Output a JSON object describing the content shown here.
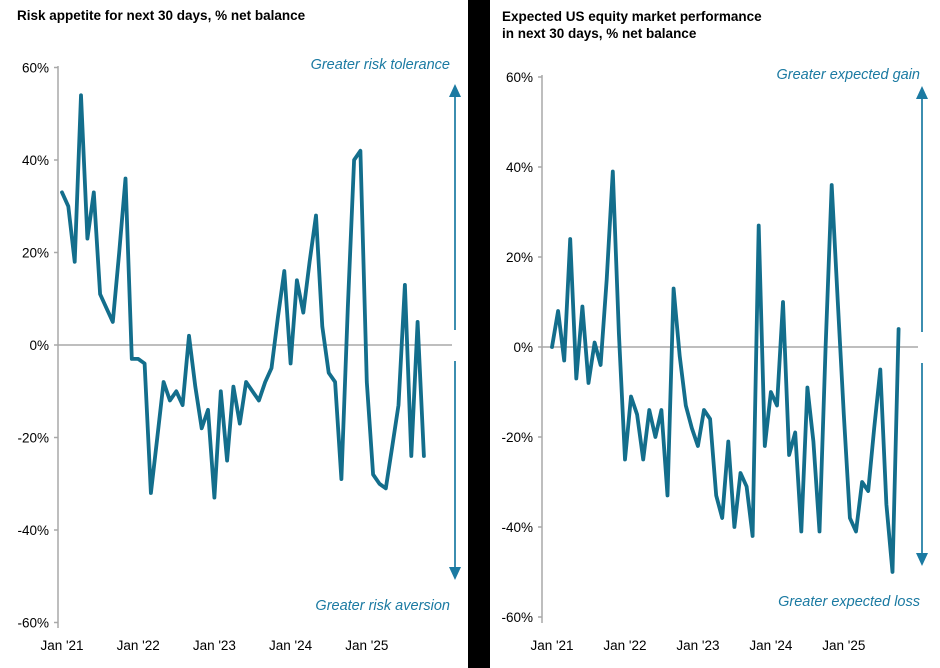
{
  "colors": {
    "line": "#136E8C",
    "accent": "#1B7AA2",
    "axis": "#A8A8A8",
    "title_text": "#000000",
    "divider": "#000000",
    "background": "#FFFFFF"
  },
  "panels": [
    {
      "title_lines": [
        "Risk appetite for next 30 days, % net balance"
      ],
      "annotation_top": "Greater risk tolerance",
      "annotation_bottom": "Greater risk aversion"
    },
    {
      "title_lines": [
        "Expected US equity market performance",
        "in next 30 days, % net balance"
      ],
      "annotation_top": "Greater expected gain",
      "annotation_bottom": "Greater  expected loss"
    }
  ],
  "chart_data": [
    {
      "type": "line",
      "title": "Risk appetite for next 30 days, % net balance",
      "series_name": "Risk appetite, % net balance",
      "xlabel": "",
      "ylabel": "% net balance",
      "ylim": [
        -60,
        60
      ],
      "grid": "zero-line-only",
      "legend": "none",
      "ytick_values": [
        60,
        40,
        20,
        0,
        -20,
        -40,
        -60
      ],
      "ytick_labels": [
        "60%",
        "40%",
        "20%",
        "0%",
        "-20%",
        "-40%",
        "-60%"
      ],
      "xtick_labels": [
        "Jan '21",
        "Jan '22",
        "Jan '23",
        "Jan '24",
        "Jan '25"
      ],
      "annotations": [
        "Greater risk tolerance",
        "Greater risk aversion"
      ],
      "x": [
        "2021-01",
        "2021-02",
        "2021-03",
        "2021-04",
        "2021-05",
        "2021-06",
        "2021-07",
        "2021-08",
        "2021-09",
        "2021-10",
        "2021-11",
        "2021-12",
        "2022-01",
        "2022-02",
        "2022-03",
        "2022-04",
        "2022-05",
        "2022-06",
        "2022-07",
        "2022-08",
        "2022-09",
        "2022-10",
        "2022-11",
        "2022-12",
        "2023-01",
        "2023-02",
        "2023-03",
        "2023-04",
        "2023-05",
        "2023-06",
        "2023-07",
        "2023-08",
        "2023-09",
        "2023-10",
        "2023-11",
        "2023-12",
        "2024-01",
        "2024-02",
        "2024-03",
        "2024-04",
        "2024-05",
        "2024-06",
        "2024-07",
        "2024-08",
        "2024-09",
        "2024-10",
        "2024-11",
        "2024-12",
        "2025-01",
        "2025-02",
        "2025-03",
        "2025-04",
        "2025-05",
        "2025-06",
        "2025-07",
        "2025-08",
        "2025-09",
        "2025-10"
      ],
      "values": [
        33,
        30,
        18,
        54,
        23,
        33,
        11,
        8,
        5,
        20,
        36,
        -3,
        -3,
        -4,
        -32,
        -20,
        -8,
        -12,
        -10,
        -13,
        2,
        -9,
        -18,
        -14,
        -33,
        -10,
        -25,
        -9,
        -17,
        -8,
        -10,
        -12,
        -8,
        -5,
        6,
        16,
        -4,
        14,
        7,
        18,
        28,
        4,
        -6,
        -8,
        -29,
        8,
        40,
        42,
        -8,
        -28,
        -30,
        -31,
        -22,
        -13,
        13,
        -24,
        5,
        -24
      ]
    },
    {
      "type": "line",
      "title": "Expected US equity market performance in next 30 days, % net balance",
      "series_name": "Expected US equity market performance, % net balance",
      "xlabel": "",
      "ylabel": "% net balance",
      "ylim": [
        -60,
        60
      ],
      "grid": "zero-line-only",
      "legend": "none",
      "ytick_values": [
        60,
        40,
        20,
        0,
        -20,
        -40,
        -60
      ],
      "ytick_labels": [
        "60%",
        "40%",
        "20%",
        "0%",
        "-20%",
        "-40%",
        "-60%"
      ],
      "xtick_labels": [
        "Jan '21",
        "Jan '22",
        "Jan '23",
        "Jan '24",
        "Jan '25"
      ],
      "annotations": [
        "Greater expected gain",
        "Greater  expected loss"
      ],
      "x": [
        "2021-01",
        "2021-02",
        "2021-03",
        "2021-04",
        "2021-05",
        "2021-06",
        "2021-07",
        "2021-08",
        "2021-09",
        "2021-10",
        "2021-11",
        "2021-12",
        "2022-01",
        "2022-02",
        "2022-03",
        "2022-04",
        "2022-05",
        "2022-06",
        "2022-07",
        "2022-08",
        "2022-09",
        "2022-10",
        "2022-11",
        "2022-12",
        "2023-01",
        "2023-02",
        "2023-03",
        "2023-04",
        "2023-05",
        "2023-06",
        "2023-07",
        "2023-08",
        "2023-09",
        "2023-10",
        "2023-11",
        "2023-12",
        "2024-01",
        "2024-02",
        "2024-03",
        "2024-04",
        "2024-05",
        "2024-06",
        "2024-07",
        "2024-08",
        "2024-09",
        "2024-10",
        "2024-11",
        "2024-12",
        "2025-01",
        "2025-02",
        "2025-03",
        "2025-04",
        "2025-05",
        "2025-06",
        "2025-07",
        "2025-08",
        "2025-09",
        "2025-10"
      ],
      "values": [
        0,
        8,
        -3,
        24,
        -7,
        9,
        -8,
        1,
        -4,
        15,
        39,
        3,
        -25,
        -11,
        -15,
        -25,
        -14,
        -20,
        -14,
        -33,
        13,
        -2,
        -13,
        -18,
        -22,
        -14,
        -16,
        -33,
        -38,
        -21,
        -40,
        -28,
        -31,
        -42,
        27,
        -22,
        -10,
        -13,
        10,
        -24,
        -19,
        -41,
        -9,
        -21,
        -41,
        0,
        36,
        10,
        -15,
        -38,
        -41,
        -30,
        -32,
        -18,
        -5,
        -35,
        -50,
        4
      ]
    }
  ]
}
